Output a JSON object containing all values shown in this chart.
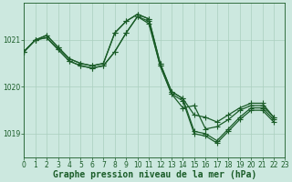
{
  "title": "Graphe pression niveau de la mer (hPa)",
  "xlim": [
    0,
    23
  ],
  "ylim": [
    1018.5,
    1021.8
  ],
  "yticks": [
    1019,
    1020,
    1021
  ],
  "xticks": [
    0,
    1,
    2,
    3,
    4,
    5,
    6,
    7,
    8,
    9,
    10,
    11,
    12,
    13,
    14,
    15,
    16,
    17,
    18,
    19,
    20,
    21,
    22,
    23
  ],
  "bg_color": "#cce8df",
  "line_color": "#1a5c28",
  "grid_color": "#aacfbf",
  "series": [
    {
      "x": [
        0,
        1,
        2,
        3,
        4,
        5,
        6,
        7,
        8,
        9,
        10,
        11,
        12,
        13,
        14,
        15,
        16,
        17,
        18,
        19,
        20,
        21,
        22
      ],
      "y": [
        1020.75,
        1021.0,
        1021.1,
        1020.85,
        1020.6,
        1020.5,
        1020.45,
        1020.5,
        1021.15,
        1021.4,
        1021.55,
        1021.45,
        1020.5,
        1019.9,
        1019.75,
        1019.05,
        1019.0,
        1018.85,
        1019.1,
        1019.35,
        1019.55,
        1019.55,
        1019.3
      ]
    },
    {
      "x": [
        0,
        1,
        2,
        3,
        4,
        5,
        6,
        7,
        8,
        9,
        10,
        11,
        12,
        13,
        14,
        15,
        16,
        17,
        18,
        19,
        20,
        21,
        22
      ],
      "y": [
        1020.75,
        1021.0,
        1021.1,
        1020.85,
        1020.6,
        1020.5,
        1020.45,
        1020.5,
        1021.15,
        1021.4,
        1021.55,
        1021.45,
        1020.5,
        1019.9,
        1019.75,
        1019.4,
        1019.35,
        1019.25,
        1019.4,
        1019.55,
        1019.65,
        1019.65,
        1019.35
      ]
    },
    {
      "x": [
        0,
        1,
        2,
        3,
        4,
        5,
        6,
        7,
        8,
        9,
        10,
        11,
        12,
        13,
        14,
        15,
        16,
        17,
        18,
        19,
        20,
        21,
        22
      ],
      "y": [
        1020.75,
        1021.0,
        1021.05,
        1020.8,
        1020.55,
        1020.45,
        1020.4,
        1020.45,
        1020.75,
        1021.15,
        1021.5,
        1021.4,
        1020.45,
        1019.85,
        1019.7,
        1019.0,
        1018.95,
        1018.8,
        1019.05,
        1019.3,
        1019.5,
        1019.5,
        1019.25
      ]
    },
    {
      "x": [
        0,
        1,
        2,
        3,
        4,
        5,
        6,
        7,
        8,
        9,
        10,
        11,
        12,
        13,
        14,
        15,
        16,
        17,
        18,
        19,
        20,
        21,
        22
      ],
      "y": [
        1020.75,
        1021.0,
        1021.05,
        1020.8,
        1020.55,
        1020.45,
        1020.4,
        1020.45,
        1020.75,
        1021.15,
        1021.5,
        1021.35,
        1020.45,
        1019.85,
        1019.55,
        1019.6,
        1019.1,
        1019.15,
        1019.3,
        1019.5,
        1019.6,
        1019.6,
        1019.35
      ]
    }
  ],
  "marker": "+",
  "markersize": 4,
  "linewidth": 0.9,
  "title_fontsize": 7,
  "tick_fontsize": 5.5
}
